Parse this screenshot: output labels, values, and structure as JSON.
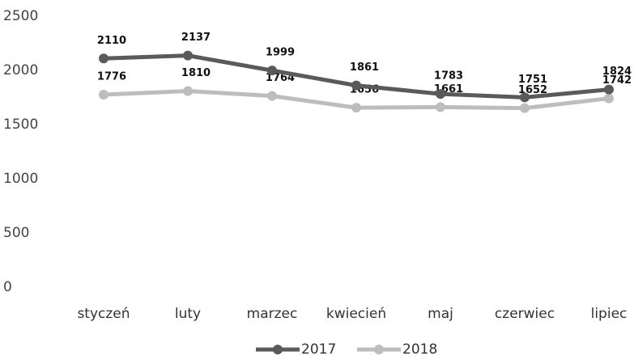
{
  "chart_data": {
    "type": "line",
    "categories": [
      "styczeń",
      "luty",
      "marzec",
      "kwiecień",
      "maj",
      "czerwiec",
      "lipiec"
    ],
    "series": [
      {
        "name": "2017",
        "color": "#5a5a5a",
        "values": [
          2110,
          2137,
          1999,
          1861,
          1783,
          1751,
          1824
        ]
      },
      {
        "name": "2018",
        "color": "#bdbdbd",
        "values": [
          1776,
          1810,
          1764,
          1656,
          1661,
          1652,
          1742
        ]
      }
    ],
    "ylim": [
      0,
      2500
    ],
    "yticks": [
      0,
      500,
      1000,
      1500,
      2000,
      2500
    ],
    "grid": false,
    "legend": "bottom"
  }
}
